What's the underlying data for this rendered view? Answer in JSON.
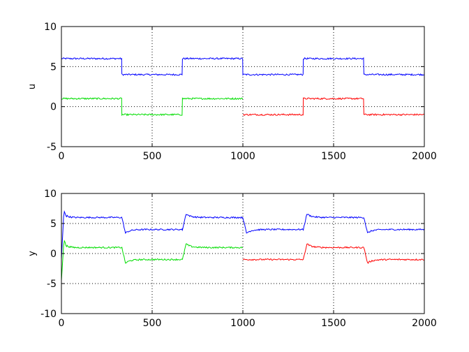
{
  "chart_data": [
    {
      "type": "line",
      "ylabel": "u",
      "xlim": [
        0,
        2000
      ],
      "ylim": [
        -5,
        10
      ],
      "xticks": [
        0,
        500,
        1000,
        1500,
        2000
      ],
      "yticks": [
        -5,
        0,
        5,
        10
      ],
      "xtick_labels": [
        "0",
        "500",
        "1000",
        "1500",
        "2000"
      ],
      "ytick_labels": [
        "-5",
        "0",
        "5",
        "10"
      ],
      "grid": true,
      "series": [
        {
          "color": "#0000ff",
          "kind": "step",
          "segments": [
            {
              "x0": 0,
              "x1": 333,
              "y": 6
            },
            {
              "x0": 333,
              "x1": 667,
              "y": 4
            },
            {
              "x0": 667,
              "x1": 1000,
              "y": 6
            },
            {
              "x0": 1000,
              "x1": 1333,
              "y": 4
            },
            {
              "x0": 1333,
              "x1": 1667,
              "y": 6
            },
            {
              "x0": 1667,
              "x1": 2000,
              "y": 4
            }
          ]
        },
        {
          "color": "#00dd00",
          "kind": "step",
          "segments": [
            {
              "x0": 0,
              "x1": 333,
              "y": 1
            },
            {
              "x0": 333,
              "x1": 667,
              "y": -1
            },
            {
              "x0": 667,
              "x1": 1000,
              "y": 1
            }
          ]
        },
        {
          "color": "#ff0000",
          "kind": "step",
          "segments": [
            {
              "x0": 1000,
              "x1": 1333,
              "y": -1
            },
            {
              "x0": 1333,
              "x1": 1667,
              "y": 1
            },
            {
              "x0": 1667,
              "x1": 2000,
              "y": -1
            }
          ]
        }
      ]
    },
    {
      "type": "line",
      "ylabel": "y",
      "xlim": [
        0,
        2000
      ],
      "ylim": [
        -10,
        10
      ],
      "xticks": [
        0,
        500,
        1000,
        1500,
        2000
      ],
      "yticks": [
        -10,
        -5,
        0,
        5,
        10
      ],
      "xtick_labels": [
        "0",
        "500",
        "1000",
        "1500",
        "2000"
      ],
      "ytick_labels": [
        "-10",
        "-5",
        "0",
        "5",
        "10"
      ],
      "grid": true,
      "series": [
        {
          "color": "#0000ff",
          "kind": "response",
          "start": -1,
          "initial_peak": 7.2,
          "overshoot": 0.6,
          "segments": [
            {
              "x0": 0,
              "x1": 333,
              "y": 6
            },
            {
              "x0": 333,
              "x1": 667,
              "y": 4
            },
            {
              "x0": 667,
              "x1": 1000,
              "y": 6
            },
            {
              "x0": 1000,
              "x1": 1333,
              "y": 4
            },
            {
              "x0": 1333,
              "x1": 1667,
              "y": 6
            },
            {
              "x0": 1667,
              "x1": 2000,
              "y": 4
            }
          ]
        },
        {
          "color": "#00dd00",
          "kind": "response",
          "start": -4.5,
          "initial_peak": 2.3,
          "overshoot": 0.6,
          "segments": [
            {
              "x0": 0,
              "x1": 333,
              "y": 1
            },
            {
              "x0": 333,
              "x1": 667,
              "y": -1
            },
            {
              "x0": 667,
              "x1": 1000,
              "y": 1
            }
          ]
        },
        {
          "color": "#ff0000",
          "kind": "response",
          "overshoot": 0.6,
          "segments": [
            {
              "x0": 1000,
              "x1": 1333,
              "y": -1
            },
            {
              "x0": 1333,
              "x1": 1667,
              "y": 1
            },
            {
              "x0": 1667,
              "x1": 2000,
              "y": -1
            }
          ]
        }
      ]
    }
  ]
}
